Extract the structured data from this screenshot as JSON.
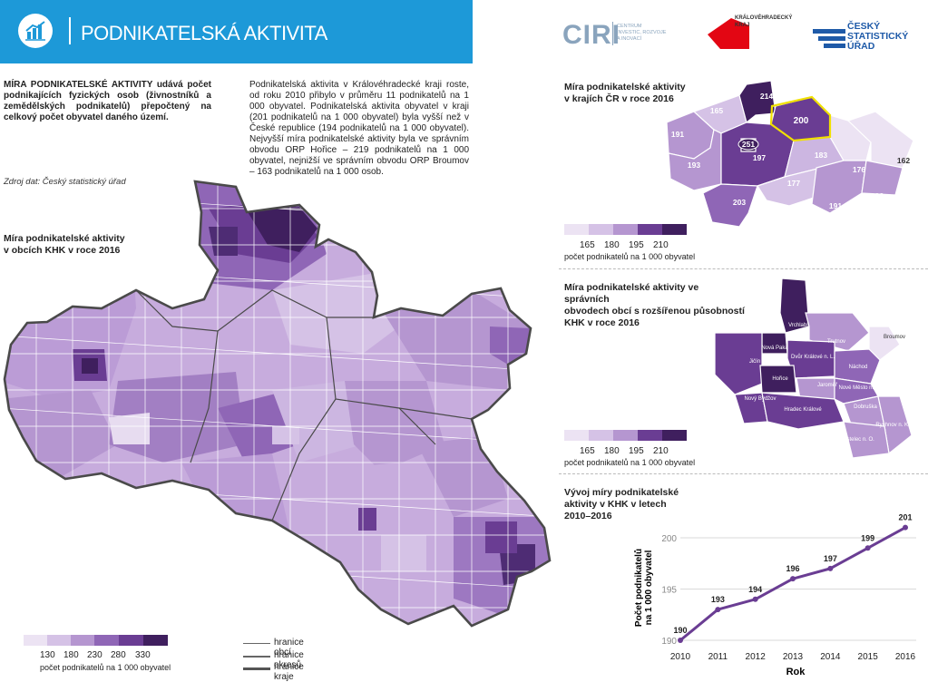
{
  "header": {
    "title": "PODNIKATELSKÁ AKTIVITA",
    "ciri_logo": "CIRI",
    "ciri_sub": [
      "CENTRUM",
      "INVESTIC, ROZVOJE",
      "A INOVACÍ"
    ],
    "khk_logo": [
      "KRÁLOVÉHRADECKÝ",
      "KRAJ"
    ],
    "csu_logo": [
      "ČESKÝ",
      "STATISTICKÝ",
      "ÚŘAD"
    ]
  },
  "intro": {
    "definition": "MÍRA PODNIKATELSKÉ AKTIVITY udává počet podnikajících fyzických osob (živnostníků a zemědělských podnikatelů) přepočtený na celkový počet obyvatel daného území.",
    "source": "Zdroj dat: Český statistický úřad",
    "description": "Podnikatelská aktivita v Královéhradecké kraji roste, od roku 2010 přibylo v průměru 11 podnikatelů na 1 000 obyvatel. Podnikatelská aktivita obyvatel v kraji (201 podnikatelů na 1 000 obyvatel) byla vyšší než v České republice (194 podnikatelů na 1 000 obyvatel). Nejvyšší míra podnikatelské aktivity byla ve správním obvodu ORP Hořice – 219 podnikatelů na 1 000 obyvatel, nejnižší ve správním obvodu ORP Broumov – 163 podnikatelů na 1 000 osob."
  },
  "main_map": {
    "title": [
      "Míra podnikatelské aktivity",
      "v obcích KHK v roce 2016"
    ],
    "legend_labels": [
      "130",
      "180",
      "230",
      "280",
      "330"
    ],
    "legend_unit": "počet podnikatelů na 1 000 obyvatel",
    "boundaries": [
      "hranice obcí",
      "hranice okresů",
      "hranice kraje"
    ]
  },
  "cr_map": {
    "title": [
      "Míra podnikatelské aktivity",
      "v krajích ČR v roce 2016"
    ],
    "region_values": [
      "214",
      "165",
      "200",
      "191",
      "251",
      "183",
      "197",
      "193",
      "176",
      "162",
      "177",
      "203",
      "191",
      "193"
    ],
    "legend_labels": [
      "165",
      "180",
      "195",
      "210"
    ],
    "legend_unit": "počet podnikatelů na 1 000 obyvatel"
  },
  "orp_map": {
    "title": [
      "Míra podnikatelské aktivity ve správních",
      "obvodech obcí s rozšířenou působností",
      "KHK v roce 2016"
    ],
    "labels": [
      "Vrchlabí",
      "Broumov",
      "Trutnov",
      "Nová Paka",
      "Jičín",
      "Dvůr Králové n. L.",
      "Náchod",
      "Hořice",
      "Jaroměř",
      "Nové Město n. M.",
      "Nový Bydžov",
      "Hradec Králové",
      "Dobruška",
      "Rychnov n. K.",
      "Kostelec n. O."
    ],
    "legend_labels": [
      "165",
      "180",
      "195",
      "210"
    ],
    "legend_unit": "počet podnikatelů na 1 000 obyvatel"
  },
  "colors": {
    "banner": "#1d99d8",
    "scale": [
      "#ece3f3",
      "#d5c2e6",
      "#b596d0",
      "#8f66b6",
      "#6a3d93",
      "#3f1f5e"
    ],
    "line": "#6a3d93",
    "highlight": "#f0e000"
  },
  "chart_data": {
    "type": "line",
    "title": "Vývoj míry podnikatelské aktivity v KHK v letech 2010–2016",
    "title_lines": [
      "Vývoj míry podnikatelské",
      "aktivity v KHK v letech",
      "2010–2016"
    ],
    "x": [
      2010,
      2011,
      2012,
      2013,
      2014,
      2015,
      2016
    ],
    "x_tick_labels": [
      "2010",
      "2011",
      "2012",
      "2013",
      "2014",
      "2015",
      "2016"
    ],
    "series": [
      {
        "values": [
          190,
          193,
          194,
          196,
          197,
          199,
          201
        ]
      }
    ],
    "data_labels": [
      "190",
      "193",
      "194",
      "196",
      "197",
      "199",
      "201"
    ],
    "xlabel": "Rok",
    "ylabel_lines": [
      "Počet podnikatelů",
      "na 1 000 obyvatel"
    ],
    "ylim": [
      190,
      201.5
    ],
    "y_ticks": [
      190,
      195,
      200
    ],
    "y_tick_labels": [
      "190",
      "195",
      "200"
    ],
    "grid": "horizontal"
  }
}
